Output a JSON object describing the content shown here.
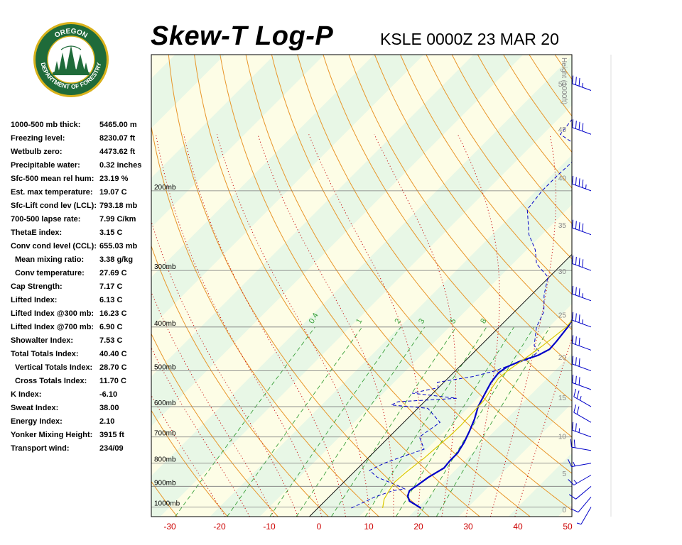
{
  "header": {
    "title": "Skew-T Log-P",
    "station_time": "KSLE 0000Z 23 MAR 20"
  },
  "logo": {
    "top_text": "OREGON",
    "ring_text": "DEPARTMENT OF FORESTRY",
    "colors": {
      "ring": "#1f6b3a",
      "border": "#d9b21c",
      "tree": "#1f6b3a"
    }
  },
  "indices": [
    {
      "label": "1000-500 mb thick:",
      "value": "5465.00 m",
      "indent": false
    },
    {
      "label": "Freezing level:",
      "value": "8230.07 ft",
      "indent": false
    },
    {
      "label": "Wetbulb zero:",
      "value": "4473.62 ft",
      "indent": false
    },
    {
      "label": "Precipitable water:",
      "value": "0.32 inches",
      "indent": false
    },
    {
      "label": "Sfc-500 mean rel hum:",
      "value": "23.19 %",
      "indent": false
    },
    {
      "label": "Est. max temperature:",
      "value": "19.07 C",
      "indent": false
    },
    {
      "label": "Sfc-Lift cond lev (LCL):",
      "value": "793.18 mb",
      "indent": false
    },
    {
      "label": "700-500 lapse rate:",
      "value": "7.99 C/km",
      "indent": false
    },
    {
      "label": "ThetaE index:",
      "value": "3.15 C",
      "indent": false
    },
    {
      "label": "Conv cond level (CCL):",
      "value": "655.03 mb",
      "indent": false
    },
    {
      "label": "Mean mixing ratio:",
      "value": "3.38 g/kg",
      "indent": true
    },
    {
      "label": "Conv temperature:",
      "value": "27.69 C",
      "indent": true
    },
    {
      "label": "Cap Strength:",
      "value": "7.17 C",
      "indent": false
    },
    {
      "label": "Lifted Index:",
      "value": "6.13 C",
      "indent": false
    },
    {
      "label": "Lifted Index @300 mb:",
      "value": "16.23 C",
      "indent": false
    },
    {
      "label": "Lifted Index @700 mb:",
      "value": "6.90 C",
      "indent": false
    },
    {
      "label": "Showalter Index:",
      "value": "7.53 C",
      "indent": false
    },
    {
      "label": "Total Totals Index:",
      "value": "40.40 C",
      "indent": false
    },
    {
      "label": "Vertical Totals Index:",
      "value": "28.70 C",
      "indent": true
    },
    {
      "label": "Cross Totals Index:",
      "value": "11.70 C",
      "indent": true
    },
    {
      "label": "K Index:",
      "value": "-6.10",
      "indent": false
    },
    {
      "label": "Sweat Index:",
      "value": "38.00",
      "indent": false
    },
    {
      "label": "Energy Index:",
      "value": "2.10",
      "indent": false
    },
    {
      "label": "Yonker Mixing Height:",
      "value": "3915 ft",
      "indent": false
    },
    {
      "label": "Transport wind:",
      "value": "234/09",
      "indent": false
    }
  ],
  "chart_data": {
    "type": "line",
    "title": "Skew-T Log-P",
    "subtitle": "KSLE 0000Z 23 MAR 20",
    "xlabel": "",
    "ylabel": "",
    "x_ticks": [
      "-30",
      "-20",
      "-10",
      "0",
      "10",
      "20",
      "30",
      "40",
      "50"
    ],
    "pressure_levels": [
      {
        "p": 200,
        "label": "200mb"
      },
      {
        "p": 300,
        "label": "300mb"
      },
      {
        "p": 400,
        "label": "400mb"
      },
      {
        "p": 500,
        "label": "500mb"
      },
      {
        "p": 600,
        "label": "600mb"
      },
      {
        "p": 700,
        "label": "700mb"
      },
      {
        "p": 800,
        "label": "800mb"
      },
      {
        "p": 900,
        "label": "900mb"
      },
      {
        "p": 1000,
        "label": "1000mb"
      }
    ],
    "height_axis": {
      "title": "Height (1000ft)",
      "ticks": [
        {
          "label": "0",
          "p": 1013
        },
        {
          "label": "5",
          "p": 843
        },
        {
          "label": "10",
          "p": 697
        },
        {
          "label": "15",
          "p": 572
        },
        {
          "label": "20",
          "p": 466
        },
        {
          "label": "25",
          "p": 376
        },
        {
          "label": "30",
          "p": 301
        },
        {
          "label": "35",
          "p": 238
        },
        {
          "label": "40",
          "p": 187
        },
        {
          "label": "45",
          "p": 146
        },
        {
          "label": "50",
          "p": 116
        }
      ]
    },
    "mixing_ratio_labels": [
      "0.4",
      "1",
      "2",
      "3",
      "5",
      "8"
    ],
    "series": [
      {
        "kind": "temperature",
        "color": "#0000c8",
        "points": [
          [
            1005,
            20.7
          ],
          [
            970,
            17.0
          ],
          [
            945,
            15.6
          ],
          [
            920,
            14.9
          ],
          [
            895,
            15.4
          ],
          [
            860,
            16.0
          ],
          [
            820,
            17.3
          ],
          [
            790,
            17.0
          ],
          [
            760,
            17.0
          ],
          [
            720,
            16.2
          ],
          [
            680,
            15.0
          ],
          [
            640,
            13.6
          ],
          [
            600,
            11.8
          ],
          [
            560,
            10.5
          ],
          [
            530,
            9.5
          ],
          [
            505,
            9.1
          ],
          [
            490,
            9.6
          ],
          [
            475,
            11.2
          ],
          [
            462,
            13.5
          ],
          [
            448,
            14.6
          ],
          [
            430,
            14.4
          ],
          [
            400,
            13.8
          ],
          [
            370,
            12.6
          ],
          [
            340,
            11.2
          ],
          [
            310,
            9.9
          ],
          [
            280,
            8.4
          ],
          [
            250,
            7.0
          ],
          [
            225,
            5.3
          ],
          [
            210,
            5.5
          ],
          [
            195,
            6.9
          ],
          [
            180,
            7.5
          ],
          [
            168,
            8.9
          ],
          [
            158,
            13.7
          ],
          [
            148,
            17.6
          ],
          [
            138,
            18.4
          ],
          [
            128,
            21.2
          ],
          [
            115,
            24.0
          ],
          [
            105,
            27.3
          ]
        ]
      },
      {
        "kind": "dewpoint",
        "color": "#0000c8",
        "points": [
          [
            1005,
            6.7
          ],
          [
            975,
            8.1
          ],
          [
            950,
            9.2
          ],
          [
            920,
            11.6
          ],
          [
            912,
            13.6
          ],
          [
            895,
            11.3
          ],
          [
            860,
            5.8
          ],
          [
            830,
            2.8
          ],
          [
            800,
            4.3
          ],
          [
            770,
            7.0
          ],
          [
            745,
            9.5
          ],
          [
            700,
            6.1
          ],
          [
            650,
            7.3
          ],
          [
            605,
            2.0
          ],
          [
            595,
            -6.0
          ],
          [
            585,
            -5.3
          ],
          [
            575,
            5.8
          ],
          [
            560,
            -4.2
          ],
          [
            545,
            0.0
          ],
          [
            530,
            -1.3
          ],
          [
            515,
            4.6
          ],
          [
            500,
            8.0
          ],
          [
            490,
            9.3
          ],
          [
            470,
            12.6
          ],
          [
            452,
            12.8
          ],
          [
            440,
            10.8
          ],
          [
            400,
            7.5
          ],
          [
            370,
            5.9
          ],
          [
            340,
            2.6
          ],
          [
            310,
            -0.3
          ],
          [
            290,
            -5.2
          ],
          [
            270,
            -8.3
          ],
          [
            250,
            -12.6
          ],
          [
            220,
            -18.0
          ],
          [
            200,
            -18.8
          ],
          [
            185,
            -18.8
          ],
          [
            170,
            -18.5
          ],
          [
            160,
            -20.2
          ],
          [
            150,
            -26.5
          ],
          [
            135,
            -27.4
          ],
          [
            120,
            -29.2
          ]
        ]
      },
      {
        "kind": "parcel",
        "color": "#d8c800",
        "points": [
          [
            1005,
            13.0
          ],
          [
            960,
            11.5
          ],
          [
            920,
            10.8
          ],
          [
            880,
            10.2
          ],
          [
            840,
            10.5
          ],
          [
            800,
            11.0
          ],
          [
            780,
            11.3
          ],
          [
            740,
            11.6
          ],
          [
            700,
            12.0
          ],
          [
            660,
            12.1
          ],
          [
            620,
            11.9
          ],
          [
            580,
            11.7
          ],
          [
            545,
            10.8
          ],
          [
            520,
            10.2
          ],
          [
            500,
            10.5
          ],
          [
            470,
            11.5
          ],
          [
            440,
            12.5
          ],
          [
            400,
            13.5
          ],
          [
            370,
            13.0
          ]
        ]
      }
    ],
    "wind_barbs": [
      {
        "p": 1000,
        "dir": 210,
        "spd": 5
      },
      {
        "p": 950,
        "dir": 220,
        "spd": 10
      },
      {
        "p": 900,
        "dir": 230,
        "spd": 10
      },
      {
        "p": 850,
        "dir": 240,
        "spd": 15
      },
      {
        "p": 800,
        "dir": 260,
        "spd": 15
      },
      {
        "p": 750,
        "dir": 280,
        "spd": 20
      },
      {
        "p": 700,
        "dir": 290,
        "spd": 25
      },
      {
        "p": 650,
        "dir": 300,
        "spd": 20
      },
      {
        "p": 600,
        "dir": 300,
        "spd": 25
      },
      {
        "p": 550,
        "dir": 290,
        "spd": 30
      },
      {
        "p": 500,
        "dir": 290,
        "spd": 30
      },
      {
        "p": 450,
        "dir": 290,
        "spd": 30
      },
      {
        "p": 400,
        "dir": 290,
        "spd": 35
      },
      {
        "p": 350,
        "dir": 290,
        "spd": 35
      },
      {
        "p": 300,
        "dir": 290,
        "spd": 40
      },
      {
        "p": 250,
        "dir": 290,
        "spd": 40
      },
      {
        "p": 200,
        "dir": 290,
        "spd": 45
      },
      {
        "p": 150,
        "dir": 290,
        "spd": 40
      },
      {
        "p": 120,
        "dir": 290,
        "spd": 35
      }
    ]
  }
}
